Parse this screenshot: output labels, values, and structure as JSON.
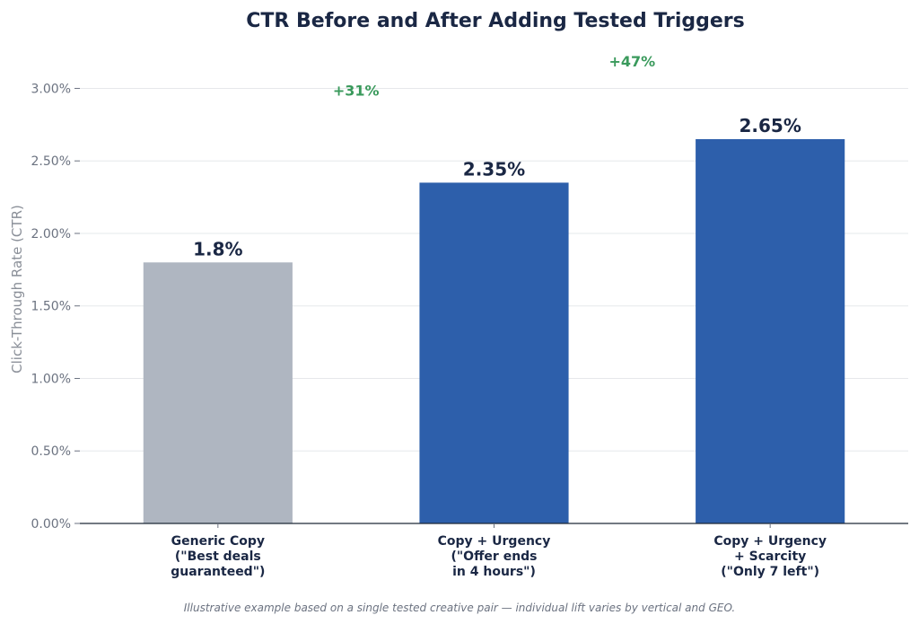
{
  "chart_data": {
    "type": "bar",
    "title": "CTR Before and After Adding Tested Triggers",
    "ylabel": "Click-Through Rate (CTR)",
    "xlabel": "",
    "ylim": [
      0,
      3.3
    ],
    "yticks": [
      0,
      0.5,
      1.0,
      1.5,
      2.0,
      2.5,
      3.0
    ],
    "ytick_labels": [
      "0.00%",
      "0.50%",
      "1.00%",
      "1.50%",
      "2.00%",
      "2.50%",
      "3.00%"
    ],
    "grid": true,
    "categories": [
      [
        "Generic Copy",
        "(\"Best deals",
        "guaranteed\")"
      ],
      [
        "Copy + Urgency",
        "(\"Offer ends",
        "in 4 hours\")"
      ],
      [
        "Copy + Urgency",
        "+ Scarcity",
        "(\"Only 7 left\")"
      ]
    ],
    "values": [
      1.8,
      2.35,
      2.65
    ],
    "value_labels": [
      "1.8%",
      "2.35%",
      "2.65%"
    ],
    "bar_colors": [
      "#afb6c1",
      "#2d5fab",
      "#2d5fab"
    ],
    "annotations": [
      {
        "text": "+31%",
        "between": [
          0,
          1
        ],
        "y": 3.0
      },
      {
        "text": "+47%",
        "between": [
          1,
          2
        ],
        "y": 3.2
      }
    ],
    "footnote": "Illustrative example based on a single tested creative pair — individual lift varies by vertical and GEO."
  }
}
